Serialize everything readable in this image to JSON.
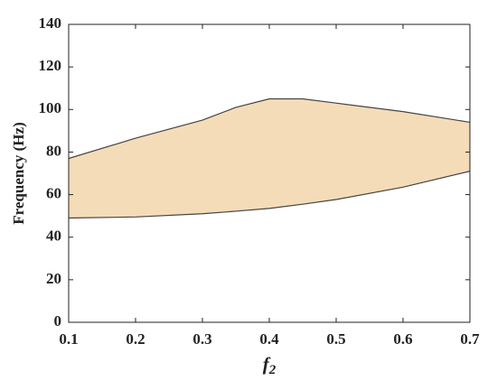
{
  "chart_data": {
    "type": "band",
    "ylabel": "Frequency (Hz)",
    "xlabel": "f",
    "xlabel_subscript": "2",
    "x": [
      0.1,
      0.2,
      0.3,
      0.35,
      0.4,
      0.45,
      0.5,
      0.6,
      0.7
    ],
    "series": [
      {
        "color": "#f5dcb8",
        "values": [
          77,
          86.5,
          95,
          101,
          105,
          105,
          103,
          99,
          94
        ]
      },
      {
        "color": "#f5dcb8",
        "values": [
          49,
          49.5,
          51,
          52.2,
          53.5,
          55.5,
          57.7,
          63.5,
          71
        ]
      }
    ],
    "xlim": [
      0.1,
      0.7
    ],
    "xticks": [
      0.1,
      0.2,
      0.3,
      0.4,
      0.5,
      0.6,
      0.7
    ],
    "ylim": [
      0,
      140
    ],
    "yticks": [
      0,
      20,
      40,
      60,
      80,
      100,
      120,
      140
    ],
    "grid": false
  }
}
